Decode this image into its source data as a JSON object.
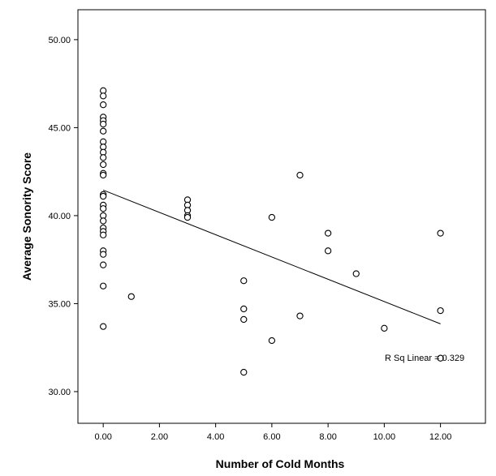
{
  "chart_data": {
    "type": "scatter",
    "title": "",
    "xlabel": "Number of Cold Months",
    "ylabel": "Average Sonority Score",
    "xlim": [
      -0.9,
      13.6
    ],
    "ylim": [
      28.2,
      51.7
    ],
    "x_ticks": [
      0,
      2,
      4,
      6,
      8,
      10,
      12
    ],
    "x_tick_labels": [
      "0.00",
      "2.00",
      "4.00",
      "6.00",
      "8.00",
      "10.00",
      "12.00"
    ],
    "y_ticks": [
      30,
      35,
      40,
      45,
      50
    ],
    "y_tick_labels": [
      "30.00",
      "35.00",
      "40.00",
      "45.00",
      "50.00"
    ],
    "grid": false,
    "legend": "none",
    "points": [
      {
        "x": 0,
        "y": 47.1
      },
      {
        "x": 0,
        "y": 46.8
      },
      {
        "x": 0,
        "y": 46.3
      },
      {
        "x": 0,
        "y": 45.6
      },
      {
        "x": 0,
        "y": 45.4
      },
      {
        "x": 0,
        "y": 45.2
      },
      {
        "x": 0,
        "y": 44.8
      },
      {
        "x": 0,
        "y": 44.2
      },
      {
        "x": 0,
        "y": 43.9
      },
      {
        "x": 0,
        "y": 43.6
      },
      {
        "x": 0,
        "y": 43.3
      },
      {
        "x": 0,
        "y": 42.9
      },
      {
        "x": 0,
        "y": 42.4
      },
      {
        "x": 0,
        "y": 42.3
      },
      {
        "x": 0,
        "y": 41.2
      },
      {
        "x": 0,
        "y": 41.1
      },
      {
        "x": 0,
        "y": 40.6
      },
      {
        "x": 0,
        "y": 40.4
      },
      {
        "x": 0,
        "y": 40.0
      },
      {
        "x": 0,
        "y": 39.7
      },
      {
        "x": 0,
        "y": 39.3
      },
      {
        "x": 0,
        "y": 39.1
      },
      {
        "x": 0,
        "y": 38.9
      },
      {
        "x": 0,
        "y": 38.0
      },
      {
        "x": 0,
        "y": 37.8
      },
      {
        "x": 0,
        "y": 37.2
      },
      {
        "x": 0,
        "y": 36.0
      },
      {
        "x": 0,
        "y": 33.7
      },
      {
        "x": 1,
        "y": 35.4
      },
      {
        "x": 3,
        "y": 40.9
      },
      {
        "x": 3,
        "y": 40.6
      },
      {
        "x": 3,
        "y": 40.3
      },
      {
        "x": 3,
        "y": 40.0
      },
      {
        "x": 3,
        "y": 39.9
      },
      {
        "x": 5,
        "y": 36.3
      },
      {
        "x": 5,
        "y": 34.7
      },
      {
        "x": 5,
        "y": 34.1
      },
      {
        "x": 5,
        "y": 31.1
      },
      {
        "x": 6,
        "y": 39.9
      },
      {
        "x": 6,
        "y": 32.9
      },
      {
        "x": 7,
        "y": 42.3
      },
      {
        "x": 7,
        "y": 34.3
      },
      {
        "x": 8,
        "y": 39.0
      },
      {
        "x": 8,
        "y": 38.0
      },
      {
        "x": 9,
        "y": 36.7
      },
      {
        "x": 10,
        "y": 33.6
      },
      {
        "x": 12,
        "y": 39.0
      },
      {
        "x": 12,
        "y": 34.6
      },
      {
        "x": 12,
        "y": 31.9
      }
    ],
    "fit_line": {
      "type": "linear",
      "x": [
        0,
        12
      ],
      "y": [
        41.45,
        33.85
      ]
    },
    "annotations": [
      {
        "text": "R Sq Linear = 0.329"
      }
    ],
    "colors": {
      "marker_stroke": "#000000",
      "marker_fill": "#ffffff",
      "line": "#000000"
    }
  }
}
